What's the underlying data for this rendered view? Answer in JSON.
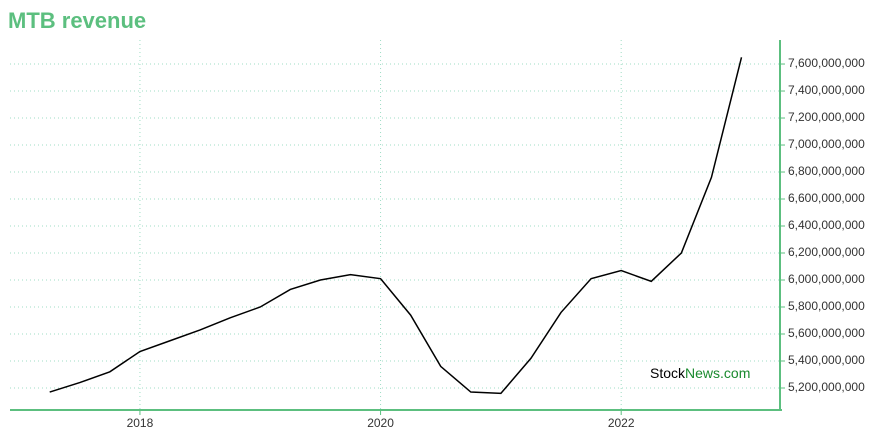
{
  "chart_data": {
    "type": "line",
    "title": "MTB revenue",
    "x": [
      2017.25,
      2017.5,
      2017.75,
      2018.0,
      2018.25,
      2018.5,
      2018.75,
      2019.0,
      2019.25,
      2019.5,
      2019.75,
      2020.0,
      2020.25,
      2020.5,
      2020.75,
      2021.0,
      2021.25,
      2021.5,
      2021.75,
      2022.0,
      2022.25,
      2022.5,
      2022.75,
      2023.0
    ],
    "series": [
      {
        "name": "MTB revenue",
        "color": "#000000",
        "values": [
          5170000000,
          5240000000,
          5320000000,
          5470000000,
          5550000000,
          5630000000,
          5720000000,
          5800000000,
          5930000000,
          6000000000,
          6040000000,
          6010000000,
          5740000000,
          5360000000,
          5170000000,
          5160000000,
          5420000000,
          5760000000,
          6010000000,
          6070000000,
          5990000000,
          6200000000,
          6760000000,
          7650000000
        ]
      }
    ],
    "xlim": [
      2016.92,
      2023.32
    ],
    "xticks": [
      2018,
      2020,
      2022
    ],
    "ylim": [
      5037000000,
      7778000000
    ],
    "yticks": [
      {
        "value": 5200000000,
        "label": "5,200,000,000"
      },
      {
        "value": 5400000000,
        "label": "5,400,000,000"
      },
      {
        "value": 5600000000,
        "label": "5,600,000,000"
      },
      {
        "value": 5800000000,
        "label": "5,800,000,000"
      },
      {
        "value": 6000000000,
        "label": "6,000,000,000"
      },
      {
        "value": 6200000000,
        "label": "6,200,000,000"
      },
      {
        "value": 6400000000,
        "label": "6,400,000,000"
      },
      {
        "value": 6600000000,
        "label": "6,600,000,000"
      },
      {
        "value": 6800000000,
        "label": "6,800,000,000"
      },
      {
        "value": 7000000000,
        "label": "7,000,000,000"
      },
      {
        "value": 7200000000,
        "label": "7,200,000,000"
      },
      {
        "value": 7400000000,
        "label": "7,400,000,000"
      },
      {
        "value": 7600000000,
        "label": "7,600,000,000"
      }
    ],
    "grid": true,
    "axis_color": "#5cbf7f",
    "watermark": [
      "Stock",
      "News.com"
    ]
  }
}
